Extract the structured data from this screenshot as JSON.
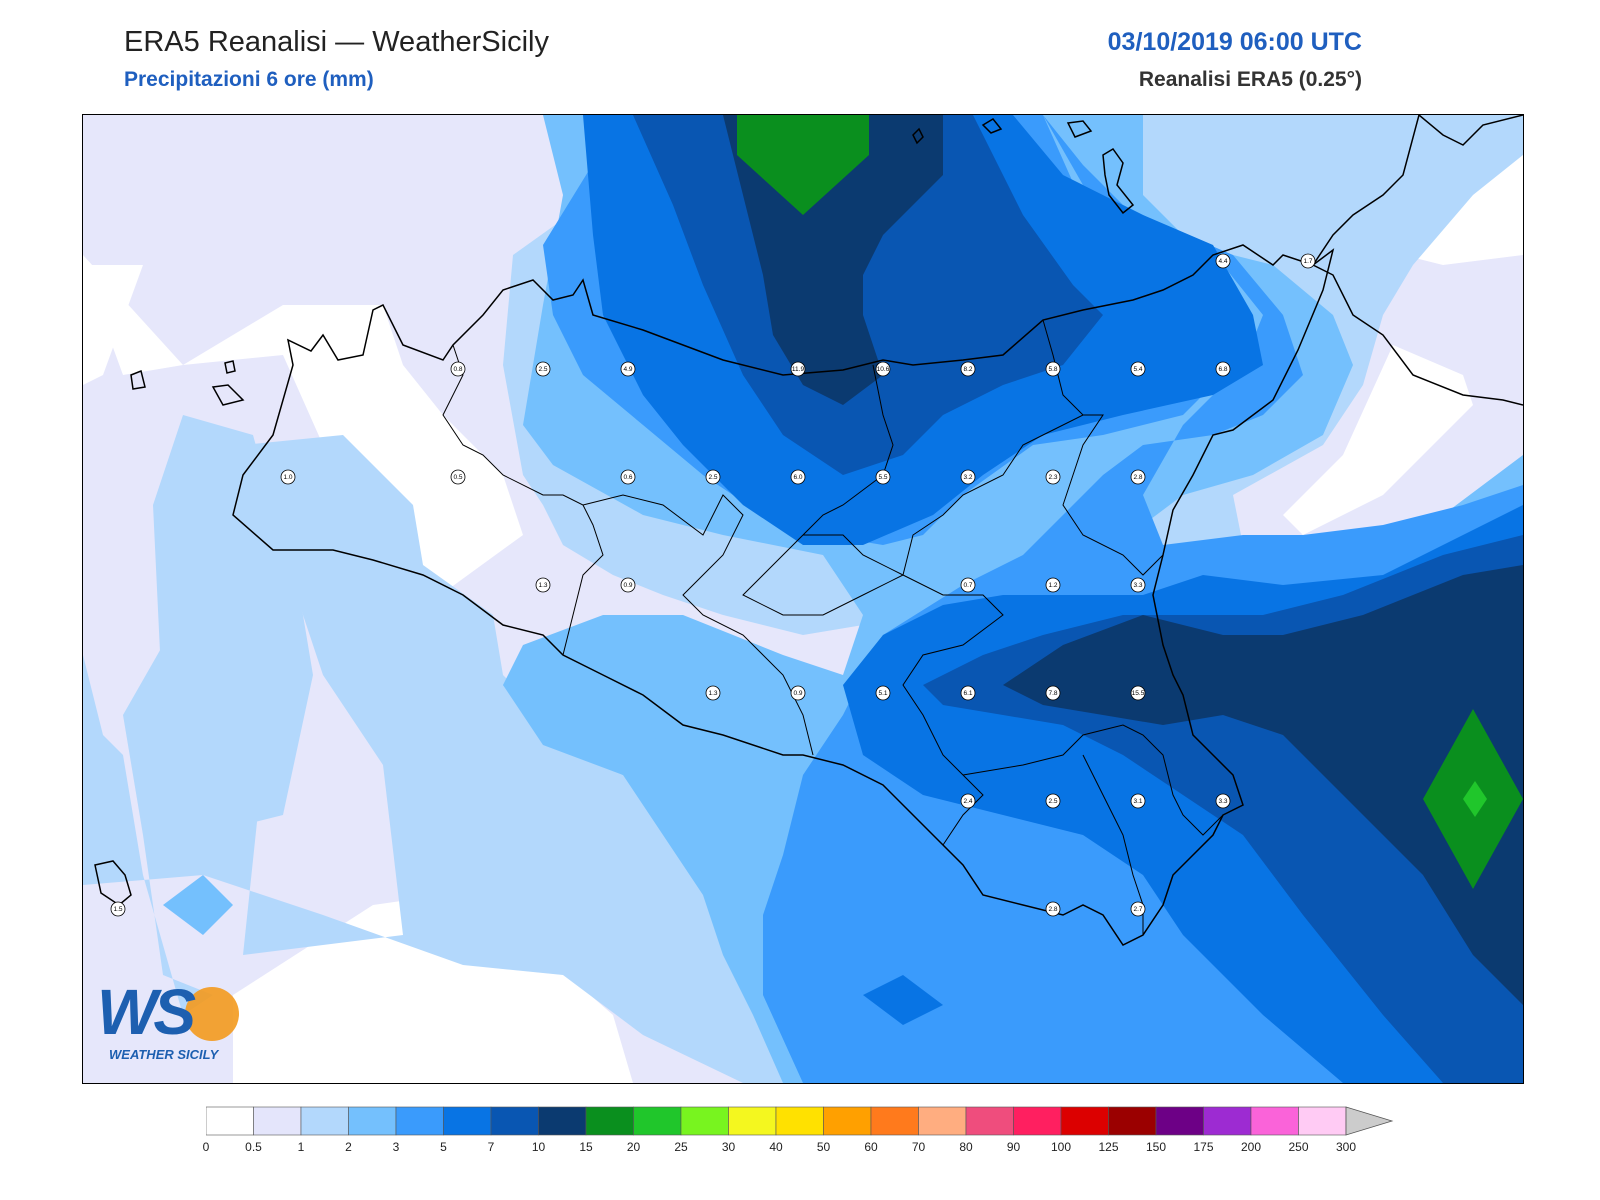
{
  "header": {
    "title": "ERA5 Reanalisi — WeatherSicily",
    "subtitle": "Precipitazioni 6 ore (mm)",
    "datetime": "03/10/2019 06:00 UTC",
    "source": "Reanalisi ERA5 (0.25°)"
  },
  "logo": {
    "letters": "WS",
    "text": "WEATHER SICILY"
  },
  "colorbar": {
    "levels": [
      "0",
      "0.5",
      "1",
      "2",
      "3",
      "5",
      "7",
      "10",
      "15",
      "20",
      "25",
      "30",
      "40",
      "50",
      "60",
      "70",
      "80",
      "90",
      "100",
      "125",
      "150",
      "175",
      "200",
      "250",
      "300"
    ],
    "colors": [
      "#ffffff",
      "#e4e5fb",
      "#b3d8fc",
      "#74c0fd",
      "#3a9bfc",
      "#0874e4",
      "#0956b2",
      "#0b3a70",
      "#0a8f1e",
      "#20c62b",
      "#78f41f",
      "#f4f71f",
      "#ffe100",
      "#ffa000",
      "#ff7a1c",
      "#ffad80",
      "#ef4d7d",
      "#ff1f60",
      "#dc0000",
      "#9b0000",
      "#6d0086",
      "#9d2bd2",
      "#fa63d9",
      "#ffcbf4"
    ]
  },
  "stations": [
    {
      "v": "0.8",
      "lon": 12.75,
      "lat": 38.35
    },
    {
      "v": "2.5",
      "lon": 13.0,
      "lat": 38.35
    },
    {
      "v": "4.9",
      "lon": 13.25,
      "lat": 38.35
    },
    {
      "v": "11.9",
      "lon": 13.75,
      "lat": 38.35
    },
    {
      "v": "10.6",
      "lon": 14.0,
      "lat": 38.35
    },
    {
      "v": "8.2",
      "lon": 14.25,
      "lat": 38.35
    },
    {
      "v": "5.8",
      "lon": 14.5,
      "lat": 38.35
    },
    {
      "v": "5.4",
      "lon": 14.75,
      "lat": 38.35
    },
    {
      "v": "6.8",
      "lon": 15.0,
      "lat": 38.35
    },
    {
      "v": "4.4",
      "lon": 15.0,
      "lat": 38.6
    },
    {
      "v": "1.7",
      "lon": 15.25,
      "lat": 38.6
    },
    {
      "v": "1.0",
      "lon": 12.25,
      "lat": 38.1
    },
    {
      "v": "0.5",
      "lon": 12.75,
      "lat": 38.1
    },
    {
      "v": "0.6",
      "lon": 13.25,
      "lat": 38.1
    },
    {
      "v": "2.5",
      "lon": 13.5,
      "lat": 38.1
    },
    {
      "v": "6.0",
      "lon": 13.75,
      "lat": 38.1
    },
    {
      "v": "5.5",
      "lon": 14.0,
      "lat": 38.1
    },
    {
      "v": "3.2",
      "lon": 14.25,
      "lat": 38.1
    },
    {
      "v": "2.3",
      "lon": 14.5,
      "lat": 38.1
    },
    {
      "v": "2.8",
      "lon": 14.75,
      "lat": 38.1
    },
    {
      "v": "1.3",
      "lon": 13.0,
      "lat": 37.85
    },
    {
      "v": "0.9",
      "lon": 13.25,
      "lat": 37.85
    },
    {
      "v": "0.7",
      "lon": 14.25,
      "lat": 37.85
    },
    {
      "v": "1.2",
      "lon": 14.5,
      "lat": 37.85
    },
    {
      "v": "3.3",
      "lon": 14.75,
      "lat": 37.85
    },
    {
      "v": "1.3",
      "lon": 13.5,
      "lat": 37.6
    },
    {
      "v": "0.9",
      "lon": 13.75,
      "lat": 37.6
    },
    {
      "v": "5.1",
      "lon": 14.0,
      "lat": 37.6
    },
    {
      "v": "6.1",
      "lon": 14.25,
      "lat": 37.6
    },
    {
      "v": "7.8",
      "lon": 14.5,
      "lat": 37.6
    },
    {
      "v": "15.5",
      "lon": 14.75,
      "lat": 37.6
    },
    {
      "v": "2.4",
      "lon": 14.25,
      "lat": 37.35
    },
    {
      "v": "2.5",
      "lon": 14.5,
      "lat": 37.35
    },
    {
      "v": "3.1",
      "lon": 14.75,
      "lat": 37.35
    },
    {
      "v": "3.3",
      "lon": 15.0,
      "lat": 37.35
    },
    {
      "v": "2.8",
      "lon": 14.5,
      "lat": 37.1
    },
    {
      "v": "2.7",
      "lon": 14.75,
      "lat": 37.1
    },
    {
      "v": "1.5",
      "lon": 11.75,
      "lat": 37.1
    }
  ]
}
